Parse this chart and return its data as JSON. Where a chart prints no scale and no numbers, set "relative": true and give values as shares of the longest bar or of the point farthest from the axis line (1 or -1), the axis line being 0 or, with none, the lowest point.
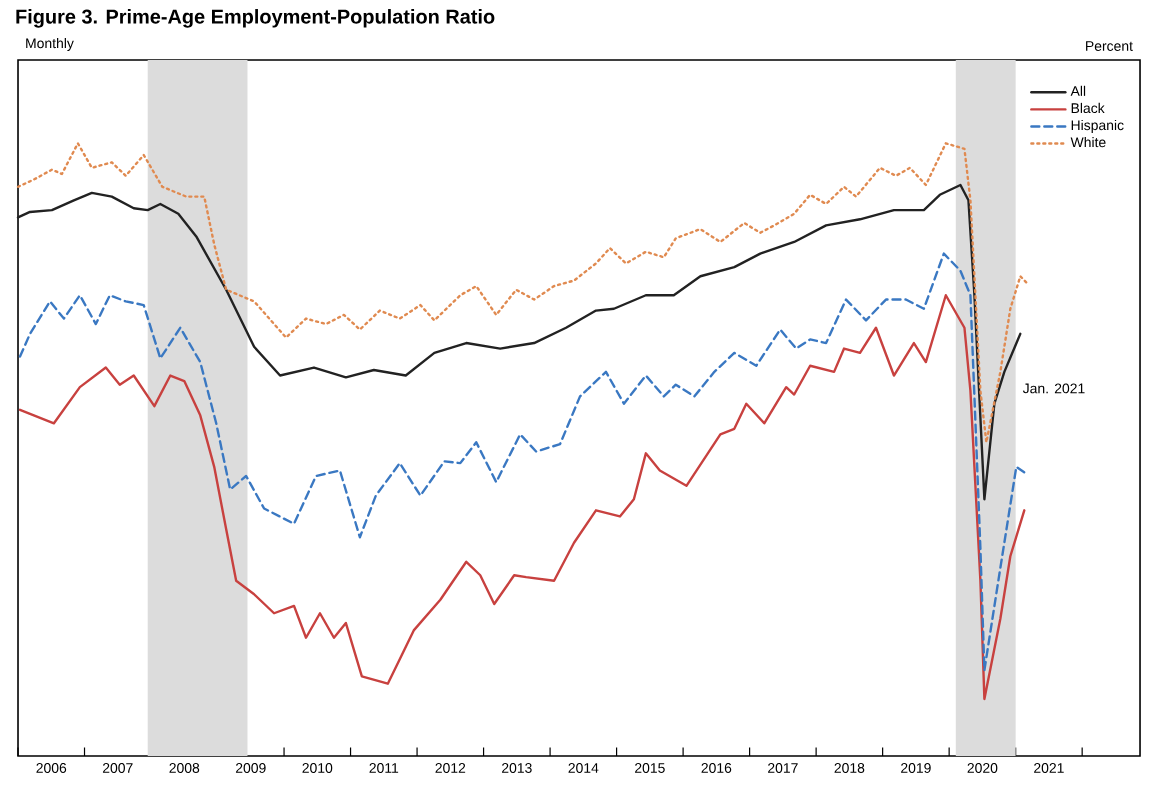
{
  "chart_data": {
    "type": "line",
    "title": "Figure 3. Prime-Age Employment-Population Ratio",
    "relative": true,
    "legend": "top right",
    "annotations": [
      "Monthly",
      "Percent",
      {
        "text": "Jan. 2021",
        "x": 2021,
        "y": 0.6
      }
    ],
    "xlim": [
      2006,
      2022.87
    ],
    "xticks": [
      {
        "value": 2006,
        "label": null
      },
      {
        "value": 2007,
        "label": null
      },
      {
        "value": 2008,
        "label": null
      },
      {
        "value": 2009,
        "label": null
      },
      {
        "value": 2010,
        "label": null
      },
      {
        "value": 2011,
        "label": null
      },
      {
        "value": 2012,
        "label": null
      },
      {
        "value": 2013,
        "label": null
      },
      {
        "value": 2014,
        "label": null
      },
      {
        "value": 2015,
        "label": null
      },
      {
        "value": 2016,
        "label": null
      },
      {
        "value": 2017,
        "label": null
      },
      {
        "value": 2018,
        "label": null
      },
      {
        "value": 2019,
        "label": null
      },
      {
        "value": 2020,
        "label": null
      },
      {
        "value": 2021,
        "label": null
      },
      {
        "value": 2022,
        "label": null
      },
      {
        "value": 2006.5,
        "label": "2006"
      },
      {
        "value": 2007.5,
        "label": "2007"
      },
      {
        "value": 2008.5,
        "label": "2008"
      },
      {
        "value": 2009.5,
        "label": "2009"
      },
      {
        "value": 2010.5,
        "label": "2010"
      },
      {
        "value": 2011.5,
        "label": "2011"
      },
      {
        "value": 2012.5,
        "label": "2012"
      },
      {
        "value": 2013.5,
        "label": "2013"
      },
      {
        "value": 2014.5,
        "label": "2014"
      },
      {
        "value": 2015.5,
        "label": "2015"
      },
      {
        "value": 2016.5,
        "label": "2016"
      },
      {
        "value": 2017.5,
        "label": "2017"
      },
      {
        "value": 2018.5,
        "label": "2018"
      },
      {
        "value": 2019.5,
        "label": "2019"
      },
      {
        "value": 2020.5,
        "label": "2020"
      },
      {
        "value": 2021.5,
        "label": "2021"
      }
    ],
    "bands": [
      {
        "axis": "x",
        "from": 2007.95,
        "to": 2009.45,
        "color": "#dcdcdc"
      },
      {
        "axis": "x",
        "from": 2020.1,
        "to": 2021.0,
        "color": "#dcdcdc"
      }
    ],
    "series": [
      {
        "name": "All",
        "color": "#222222",
        "line_style": "solid",
        "x": [
          2006.0,
          2006.18,
          2006.51,
          2006.84,
          2007.11,
          2007.41,
          2007.74,
          2007.95,
          2008.14,
          2008.41,
          2008.68,
          2009.13,
          2009.55,
          2009.94,
          2010.45,
          2010.93,
          2011.35,
          2011.83,
          2012.26,
          2012.74,
          2013.25,
          2013.76,
          2014.24,
          2014.69,
          2014.96,
          2015.44,
          2015.86,
          2016.26,
          2016.77,
          2017.16,
          2017.67,
          2018.15,
          2018.66,
          2019.17,
          2019.62,
          2019.86,
          2020.17,
          2020.29,
          2020.38,
          2020.53,
          2020.68,
          2020.83,
          2021.07
        ],
        "values": [
          0.879,
          0.888,
          0.891,
          0.907,
          0.919,
          0.913,
          0.894,
          0.891,
          0.901,
          0.885,
          0.848,
          0.761,
          0.668,
          0.621,
          0.634,
          0.618,
          0.63,
          0.621,
          0.658,
          0.674,
          0.665,
          0.674,
          0.699,
          0.727,
          0.73,
          0.752,
          0.752,
          0.783,
          0.798,
          0.82,
          0.839,
          0.866,
          0.876,
          0.891,
          0.891,
          0.916,
          0.932,
          0.907,
          0.752,
          0.419,
          0.575,
          0.627,
          0.689
        ]
      },
      {
        "name": "Black",
        "color": "#c8413f",
        "line_style": "solid",
        "x": [
          2006.03,
          2006.54,
          2006.93,
          2007.32,
          2007.53,
          2007.74,
          2008.05,
          2008.29,
          2008.5,
          2008.74,
          2008.95,
          2009.13,
          2009.28,
          2009.55,
          2009.85,
          2010.15,
          2010.33,
          2010.54,
          2010.75,
          2010.93,
          2011.17,
          2011.56,
          2011.95,
          2012.35,
          2012.74,
          2012.95,
          2013.16,
          2013.46,
          2013.64,
          2014.06,
          2014.36,
          2014.69,
          2015.05,
          2015.26,
          2015.44,
          2015.65,
          2016.05,
          2016.56,
          2016.77,
          2016.95,
          2017.22,
          2017.55,
          2017.67,
          2017.91,
          2018.27,
          2018.42,
          2018.66,
          2018.9,
          2019.17,
          2019.47,
          2019.65,
          2019.95,
          2020.23,
          2020.32,
          2020.47,
          2020.53,
          2020.77,
          2020.92,
          2021.13
        ],
        "values": [
          0.565,
          0.543,
          0.602,
          0.634,
          0.606,
          0.621,
          0.571,
          0.621,
          0.612,
          0.556,
          0.472,
          0.37,
          0.286,
          0.264,
          0.233,
          0.245,
          0.193,
          0.233,
          0.193,
          0.217,
          0.13,
          0.118,
          0.205,
          0.255,
          0.317,
          0.295,
          0.248,
          0.295,
          0.292,
          0.286,
          0.348,
          0.401,
          0.391,
          0.419,
          0.494,
          0.466,
          0.441,
          0.525,
          0.534,
          0.575,
          0.543,
          0.602,
          0.59,
          0.637,
          0.627,
          0.665,
          0.658,
          0.699,
          0.621,
          0.674,
          0.643,
          0.752,
          0.699,
          0.596,
          0.286,
          0.093,
          0.224,
          0.326,
          0.401
        ]
      },
      {
        "name": "Hispanic",
        "color": "#3a78c2",
        "line_style": "dashed",
        "x": [
          2006.03,
          2006.18,
          2006.48,
          2006.69,
          2006.93,
          2007.17,
          2007.38,
          2007.62,
          2007.89,
          2008.14,
          2008.44,
          2008.74,
          2008.98,
          2009.19,
          2009.43,
          2009.7,
          2010.15,
          2010.48,
          2010.84,
          2011.14,
          2011.38,
          2011.74,
          2012.05,
          2012.41,
          2012.65,
          2012.89,
          2013.19,
          2013.55,
          2013.79,
          2014.15,
          2014.45,
          2014.84,
          2015.11,
          2015.44,
          2015.71,
          2015.89,
          2016.17,
          2016.47,
          2016.77,
          2017.1,
          2017.46,
          2017.7,
          2017.91,
          2018.15,
          2018.45,
          2018.75,
          2019.05,
          2019.35,
          2019.62,
          2019.92,
          2020.17,
          2020.32,
          2020.47,
          2020.53,
          2020.77,
          2020.92,
          2021.01,
          2021.13
        ],
        "values": [
          0.652,
          0.689,
          0.742,
          0.714,
          0.752,
          0.705,
          0.752,
          0.742,
          0.736,
          0.649,
          0.699,
          0.643,
          0.543,
          0.435,
          0.457,
          0.404,
          0.379,
          0.457,
          0.466,
          0.357,
          0.425,
          0.478,
          0.425,
          0.481,
          0.478,
          0.512,
          0.447,
          0.525,
          0.497,
          0.509,
          0.587,
          0.627,
          0.575,
          0.621,
          0.587,
          0.606,
          0.587,
          0.627,
          0.658,
          0.637,
          0.696,
          0.665,
          0.68,
          0.674,
          0.745,
          0.711,
          0.745,
          0.745,
          0.73,
          0.82,
          0.792,
          0.752,
          0.339,
          0.14,
          0.307,
          0.41,
          0.472,
          0.463
        ]
      },
      {
        "name": "White",
        "color": "#e08a50",
        "line_style": "dotted",
        "x": [
          2006.0,
          2006.24,
          2006.51,
          2006.66,
          2006.9,
          2007.11,
          2007.41,
          2007.62,
          2007.89,
          2008.17,
          2008.53,
          2008.8,
          2008.95,
          2009.13,
          2009.55,
          2010.03,
          2010.33,
          2010.63,
          2010.9,
          2011.14,
          2011.44,
          2011.74,
          2012.05,
          2012.26,
          2012.65,
          2012.89,
          2013.19,
          2013.49,
          2013.76,
          2014.06,
          2014.36,
          2014.69,
          2014.9,
          2015.14,
          2015.44,
          2015.71,
          2015.89,
          2016.26,
          2016.56,
          2016.92,
          2017.16,
          2017.37,
          2017.67,
          2017.91,
          2018.15,
          2018.42,
          2018.6,
          2018.96,
          2019.2,
          2019.41,
          2019.65,
          2019.95,
          2020.23,
          2020.32,
          2020.47,
          2020.56,
          2020.77,
          2020.92,
          2021.07,
          2021.16
        ],
        "values": [
          0.929,
          0.941,
          0.957,
          0.95,
          1.0,
          0.96,
          0.969,
          0.947,
          0.981,
          0.929,
          0.913,
          0.913,
          0.835,
          0.761,
          0.742,
          0.683,
          0.714,
          0.705,
          0.72,
          0.696,
          0.727,
          0.714,
          0.736,
          0.711,
          0.752,
          0.767,
          0.72,
          0.761,
          0.745,
          0.767,
          0.776,
          0.804,
          0.829,
          0.804,
          0.823,
          0.814,
          0.845,
          0.86,
          0.839,
          0.87,
          0.854,
          0.866,
          0.885,
          0.916,
          0.901,
          0.929,
          0.913,
          0.96,
          0.947,
          0.96,
          0.932,
          1.0,
          0.991,
          0.907,
          0.596,
          0.512,
          0.627,
          0.73,
          0.783,
          0.773
        ]
      }
    ]
  }
}
